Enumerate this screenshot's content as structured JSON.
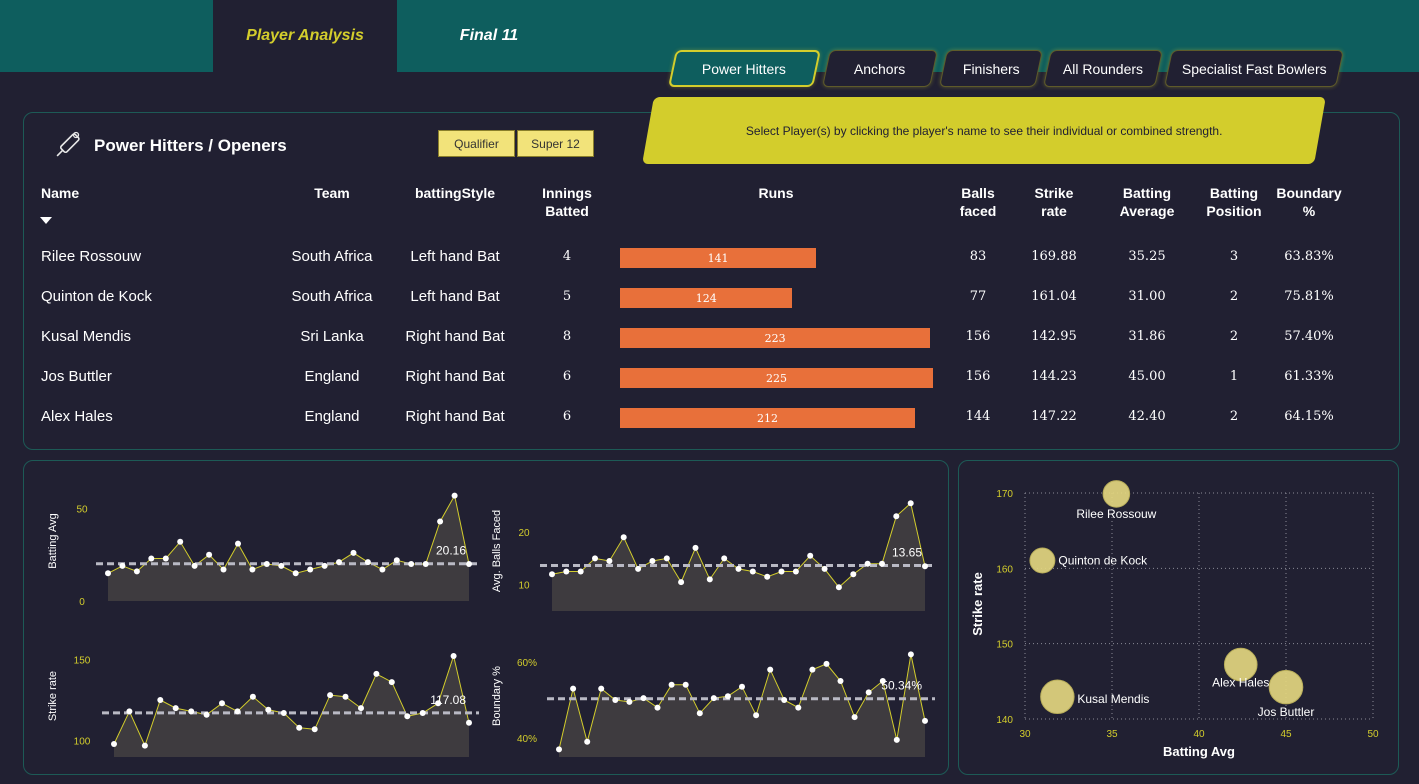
{
  "tabs": [
    {
      "label": "Player Analysis",
      "active": true
    },
    {
      "label": "Final 11",
      "active": false
    }
  ],
  "categories": [
    {
      "label": "Power Hitters",
      "selected": true
    },
    {
      "label": "Anchors",
      "selected": false
    },
    {
      "label": "Finishers",
      "selected": false
    },
    {
      "label": "All Rounders",
      "selected": false
    },
    {
      "label": "Specialist Fast Bowlers",
      "selected": false
    }
  ],
  "banner_text": "Select Player(s) by clicking the player's name to see their individual or combined strength.",
  "panel_title": "Power Hitters / Openers",
  "filters": [
    "Qualifier",
    "Super 12"
  ],
  "table": {
    "columns": [
      "Name",
      "Team",
      "battingStyle",
      "Innings Batted",
      "Runs",
      "Balls faced",
      "Strike rate",
      "Batting Average",
      "Batting Position",
      "Boundary %"
    ],
    "runs_max": 225,
    "rows": [
      {
        "name": "Rilee Rossouw",
        "team": "South Africa",
        "style": "Left hand Bat",
        "innings": "4",
        "runs": 141,
        "balls": "83",
        "sr": "169.88",
        "avg": "35.25",
        "pos": "3",
        "boundary": "63.83%"
      },
      {
        "name": "Quinton de Kock",
        "team": "South Africa",
        "style": "Left hand Bat",
        "innings": "5",
        "runs": 124,
        "balls": "77",
        "sr": "161.04",
        "avg": "31.00",
        "pos": "2",
        "boundary": "75.81%"
      },
      {
        "name": "Kusal Mendis",
        "team": "Sri Lanka",
        "style": "Right hand Bat",
        "innings": "8",
        "runs": 223,
        "balls": "156",
        "sr": "142.95",
        "avg": "31.86",
        "pos": "2",
        "boundary": "57.40%"
      },
      {
        "name": "Jos Buttler",
        "team": "England",
        "style": "Right hand Bat",
        "innings": "6",
        "runs": 225,
        "balls": "156",
        "sr": "144.23",
        "avg": "45.00",
        "pos": "1",
        "boundary": "61.33%"
      },
      {
        "name": "Alex Hales",
        "team": "England",
        "style": "Right hand Bat",
        "innings": "6",
        "runs": 212,
        "balls": "144",
        "sr": "147.22",
        "avg": "42.40",
        "pos": "2",
        "boundary": "64.15%"
      }
    ]
  },
  "chart_data": [
    {
      "type": "area",
      "ylabel": "Batting Avg",
      "ylim": [
        0,
        60
      ],
      "ticks": [
        "50",
        "0"
      ],
      "tick_values": [
        50,
        0
      ],
      "avg_line": 20.16,
      "avg_label": "20.16",
      "values": [
        15,
        19,
        16,
        23,
        23,
        32,
        19,
        25,
        17,
        31,
        17,
        20,
        19,
        15,
        17,
        19,
        21,
        26,
        21,
        17,
        22,
        20,
        20,
        43,
        57,
        20
      ]
    },
    {
      "type": "area",
      "ylabel": "Avg. Balls Faced",
      "ylim": [
        5,
        28
      ],
      "ticks": [
        "20",
        "10"
      ],
      "tick_values": [
        20,
        10
      ],
      "avg_line": 13.65,
      "avg_label": "13.65",
      "values": [
        12,
        12.5,
        12.5,
        15,
        14.5,
        19,
        13,
        14.5,
        15,
        10.5,
        17,
        11,
        15,
        13,
        12.5,
        11.5,
        12.5,
        12.5,
        15.5,
        13,
        9.5,
        12,
        14,
        14,
        23,
        25.5,
        13.5
      ]
    },
    {
      "type": "area",
      "ylabel": "Strike rate",
      "ylim": [
        90,
        160
      ],
      "ticks": [
        "150",
        "100"
      ],
      "tick_values": [
        150,
        100
      ],
      "avg_line": 117.08,
      "avg_label": "117.08",
      "values": [
        98,
        118,
        97,
        125,
        120,
        118,
        116,
        123,
        118,
        127,
        119,
        117,
        108,
        107,
        128,
        127,
        120,
        141,
        136,
        115,
        117,
        123,
        152,
        111
      ]
    },
    {
      "type": "area",
      "ylabel": "Boundary %",
      "ylim": [
        35,
        65
      ],
      "ticks": [
        "60%",
        "40%"
      ],
      "tick_values": [
        60,
        40
      ],
      "avg_line": 50.34,
      "avg_label": "50.34%",
      "values": [
        37,
        53,
        39,
        53,
        50,
        49.5,
        50.5,
        48,
        54,
        54,
        46.5,
        50.5,
        51,
        53.5,
        46,
        58,
        50,
        48,
        58,
        59.5,
        55,
        45.5,
        52,
        55,
        39.5,
        62,
        44.5
      ]
    },
    {
      "type": "scatter",
      "xlabel": "Batting Avg",
      "ylabel": "Strike rate",
      "xlim": [
        30,
        50
      ],
      "ylim": [
        140,
        170
      ],
      "xticks": [
        "30",
        "35",
        "40",
        "45",
        "50"
      ],
      "yticks": [
        "170",
        "160",
        "150",
        "140"
      ],
      "points": [
        {
          "label": "Rilee Rossouw",
          "x": 35.25,
          "y": 169.88,
          "runs": 141
        },
        {
          "label": "Quinton de Kock",
          "x": 31.0,
          "y": 161.04,
          "runs": 124
        },
        {
          "label": "Kusal Mendis",
          "x": 31.86,
          "y": 142.95,
          "runs": 223
        },
        {
          "label": "Alex Hales",
          "x": 42.4,
          "y": 147.22,
          "runs": 212
        },
        {
          "label": "Jos Buttler",
          "x": 45.0,
          "y": 144.23,
          "runs": 225
        }
      ]
    }
  ],
  "colors": {
    "background": "#212032",
    "teal": "#0e5e5e",
    "accent": "#d3cd2c",
    "runs_bar": "#e8703a",
    "area_fill": "#3e3b3f",
    "bubble": "#e3d67f"
  },
  "icons": {
    "title_icon": "cricket-bat-icon",
    "sort_icon": "sort-down-icon"
  }
}
